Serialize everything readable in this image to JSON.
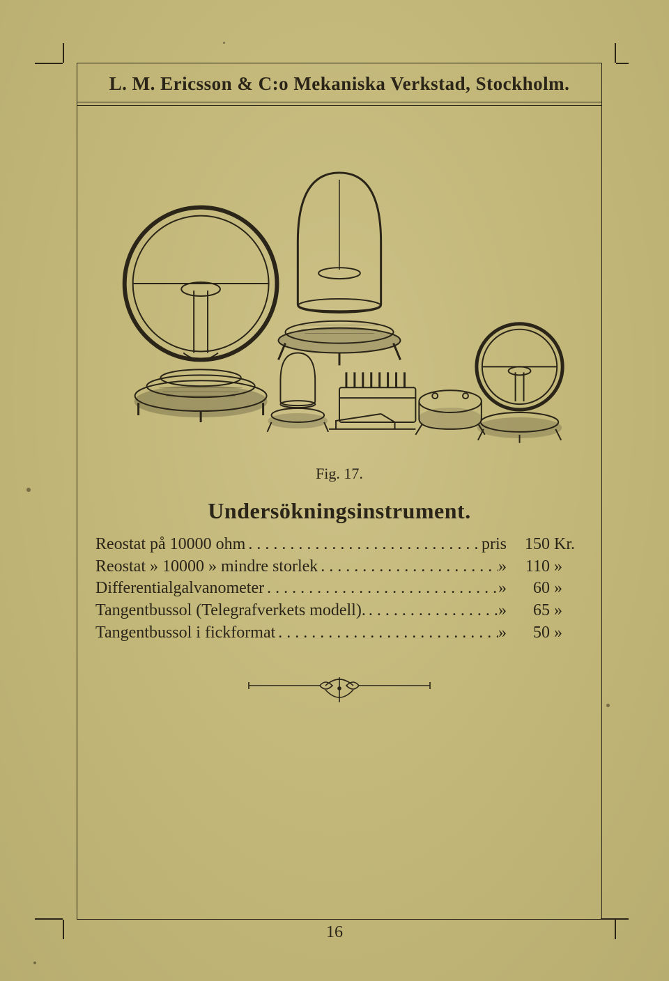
{
  "colors": {
    "paper_center": "#cdc188",
    "paper_edge": "#b8ad70",
    "ink": "#2a2518"
  },
  "header": {
    "company": "L. M. Ericsson & C:o Mekaniska Verkstad, Stockholm."
  },
  "figure": {
    "caption": "Fig. 17."
  },
  "section": {
    "title": "Undersökningsinstrument."
  },
  "price_list": {
    "label_first": "pris",
    "label_rest": "»",
    "unit_first": "Kr.",
    "unit_rest": "»",
    "rows": [
      {
        "desc": "Reostat på 10000 ohm",
        "price": "150"
      },
      {
        "desc": "Reostat » 10000 » mindre storlek",
        "price": "110"
      },
      {
        "desc": "Differentialgalvanometer",
        "price": "60"
      },
      {
        "desc": "Tangentbussol (Telegrafverkets modell).",
        "price": "65"
      },
      {
        "desc": "Tangentbussol i fickformat",
        "price": "50"
      }
    ]
  },
  "page_number": "16"
}
